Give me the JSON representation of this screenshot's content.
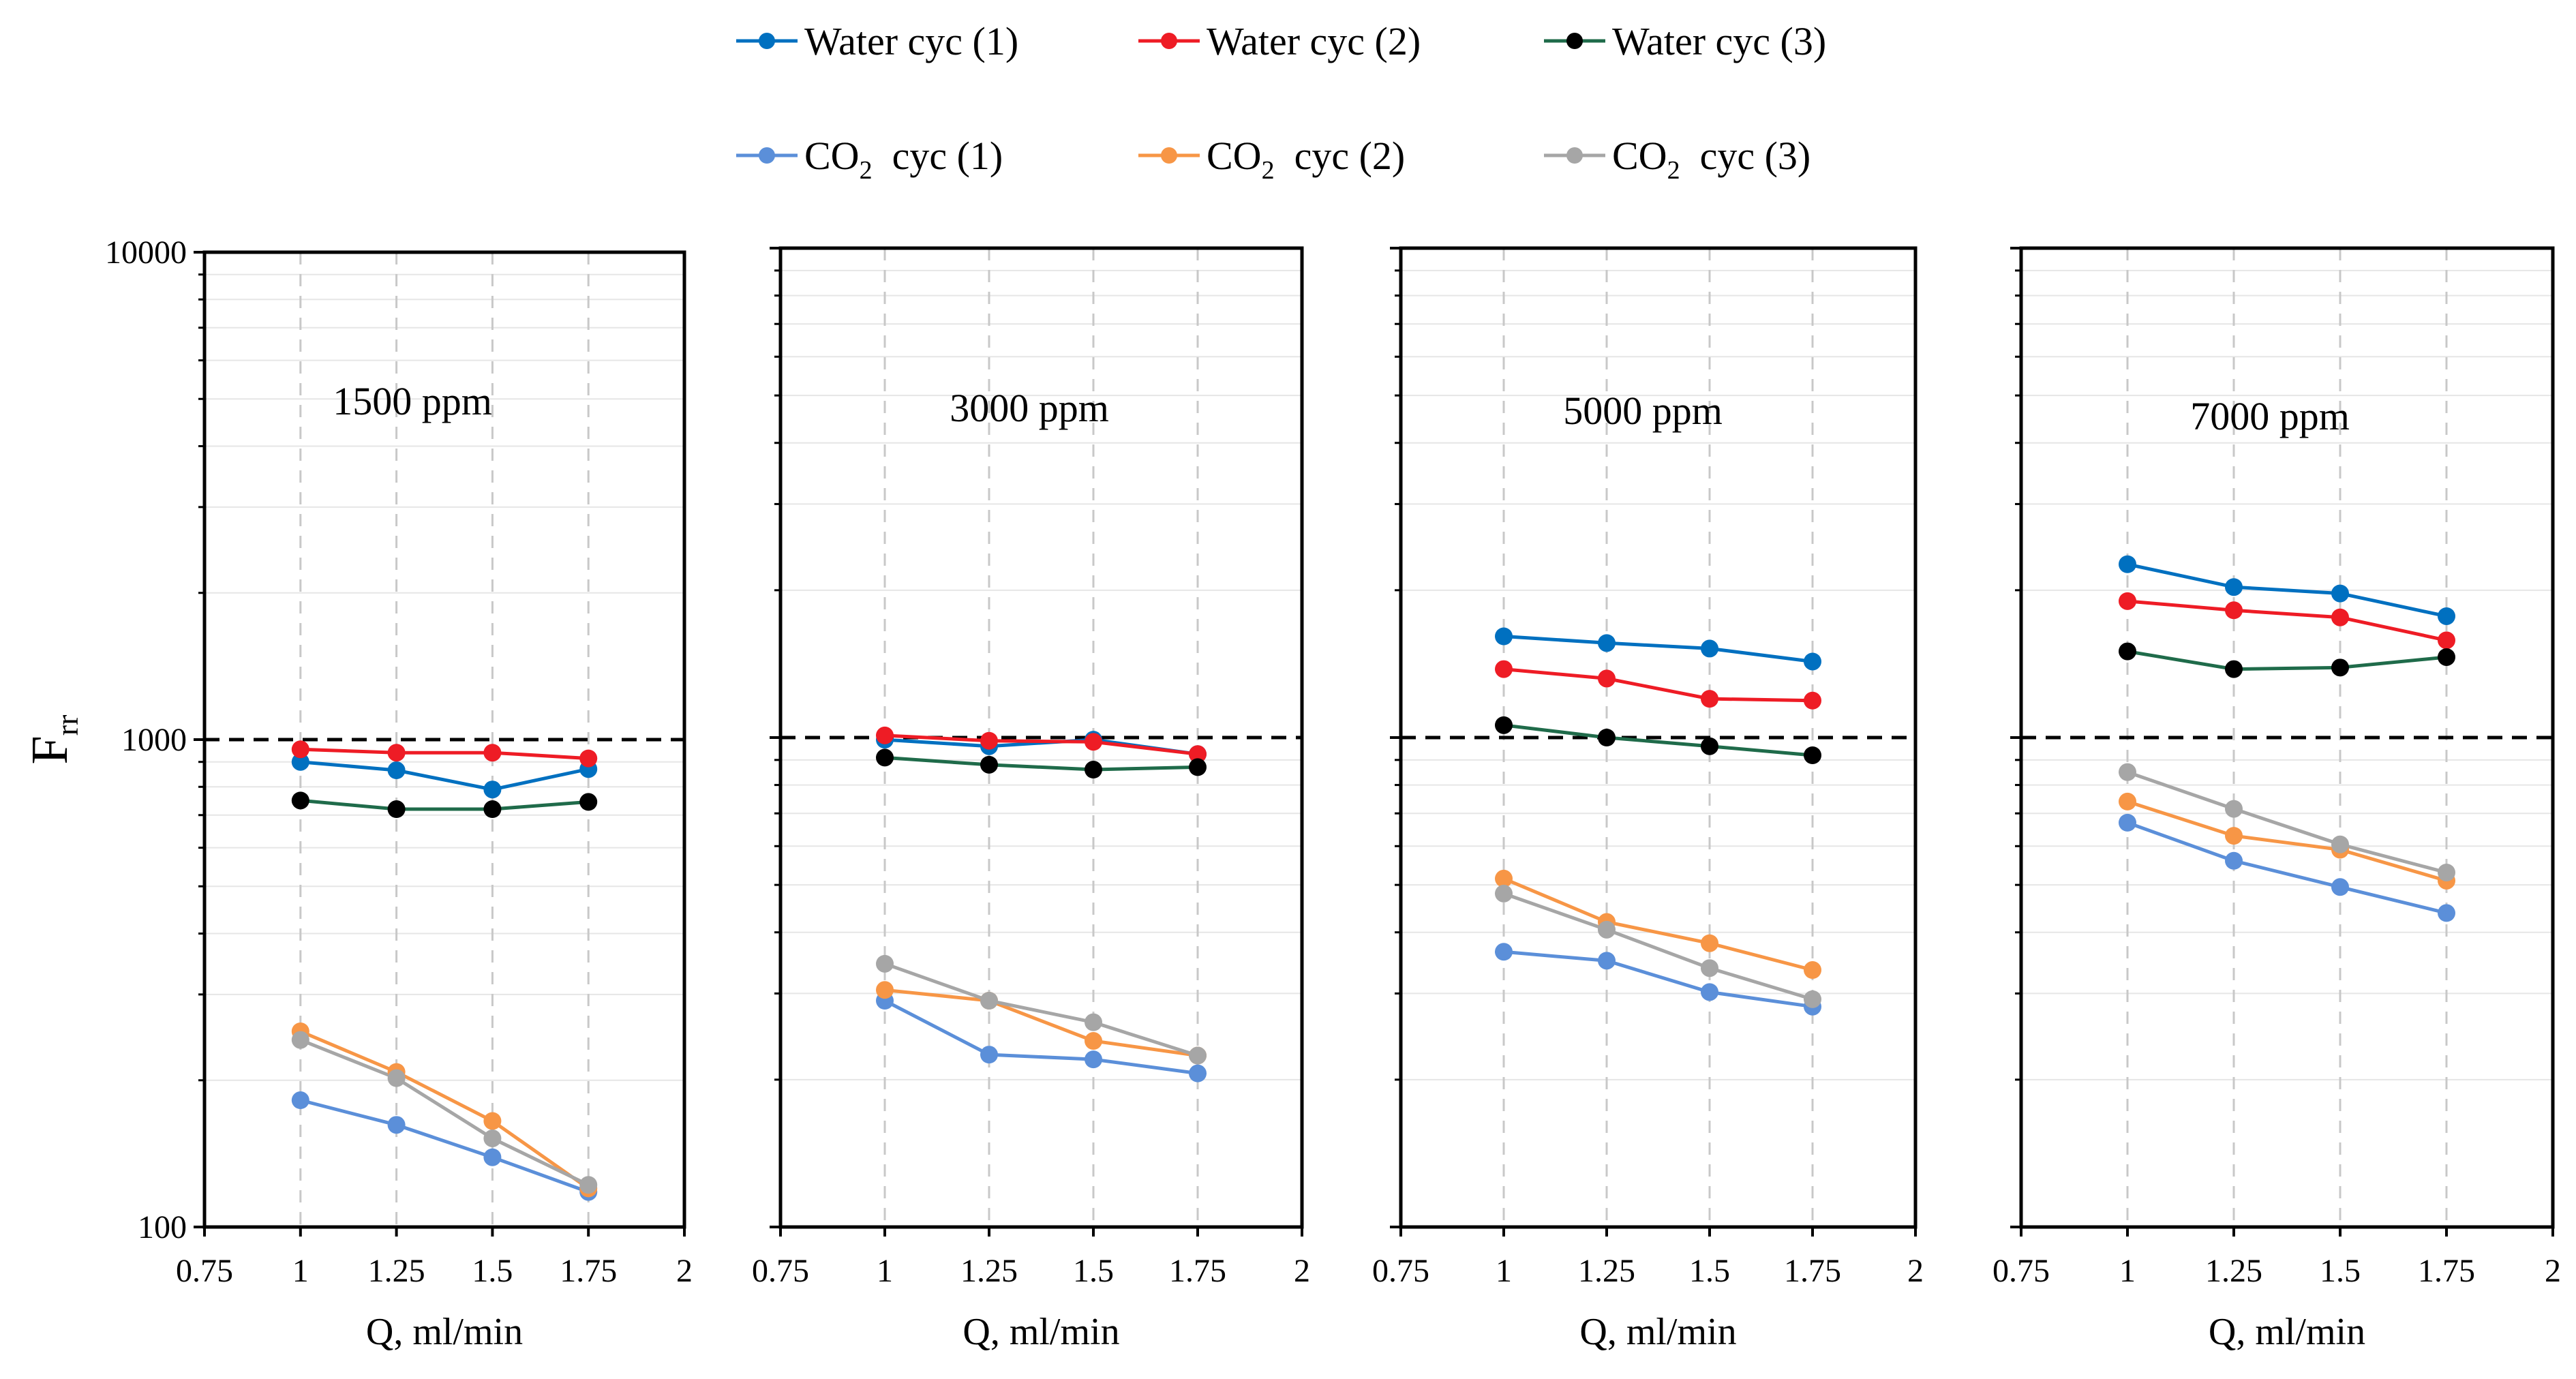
{
  "chart_data": {
    "type": "line",
    "y_scale": "log",
    "ylabel": "F",
    "ylabel_subscript": "rr",
    "xlabel": "Q, ml/min",
    "xlim": [
      0.75,
      2
    ],
    "ylim": [
      100,
      10000
    ],
    "x_ticks": [
      "0.75",
      "1",
      "1.25",
      "1.5",
      "1.75",
      "2"
    ],
    "y_ticks": [
      "100",
      "1000",
      "10000"
    ],
    "reference_line": {
      "y": 1000,
      "style": "dashed"
    },
    "x": [
      1,
      1.25,
      1.5,
      1.75
    ],
    "legend": [
      {
        "key": "water1",
        "prefix": "Water cyc (1)",
        "sub": "",
        "suffix": "",
        "color": "#0070C0"
      },
      {
        "key": "water2",
        "prefix": "Water cyc (2)",
        "sub": "",
        "suffix": "",
        "color": "#EE1C25"
      },
      {
        "key": "water3",
        "prefix": "Water cyc (3)",
        "sub": "",
        "suffix": "",
        "color": "#000000",
        "line_color": "#1F6B4A"
      },
      {
        "key": "co2_1",
        "prefix": "CO",
        "sub": "2",
        "suffix": "cyc (1)",
        "color": "#5B8FD9"
      },
      {
        "key": "co2_2",
        "prefix": "CO",
        "sub": "2",
        "suffix": "cyc (2)",
        "color": "#F79646"
      },
      {
        "key": "co2_3",
        "prefix": "CO",
        "sub": "2",
        "suffix": "cyc (3)",
        "color": "#A6A6A6"
      }
    ],
    "panels": [
      {
        "title": "1500 ppm",
        "series": {
          "water1": [
            900,
            865,
            790,
            870
          ],
          "water2": [
            955,
            940,
            940,
            915
          ],
          "water3": [
            750,
            720,
            720,
            745
          ],
          "co2_1": [
            182,
            162,
            139,
            118
          ],
          "co2_2": [
            252,
            208,
            165,
            120
          ],
          "co2_3": [
            242,
            202,
            152,
            122
          ]
        }
      },
      {
        "title": "3000 ppm",
        "series": {
          "water1": [
            990,
            960,
            990,
            925
          ],
          "water2": [
            1010,
            985,
            980,
            925
          ],
          "water3": [
            910,
            880,
            860,
            870
          ],
          "co2_1": [
            290,
            225,
            220,
            206
          ],
          "co2_2": [
            305,
            290,
            240,
            224
          ],
          "co2_3": [
            345,
            290,
            262,
            224
          ]
        }
      },
      {
        "title": "5000 ppm",
        "series": {
          "water1": [
            1610,
            1560,
            1520,
            1430
          ],
          "water2": [
            1380,
            1320,
            1200,
            1190
          ],
          "water3": [
            1060,
            1000,
            960,
            920
          ],
          "co2_1": [
            365,
            350,
            302,
            282
          ],
          "co2_2": [
            515,
            420,
            380,
            335
          ],
          "co2_3": [
            480,
            405,
            338,
            292
          ]
        }
      },
      {
        "title": "7000 ppm",
        "series": {
          "water1": [
            2260,
            2030,
            1970,
            1770
          ],
          "water2": [
            1900,
            1820,
            1760,
            1580
          ],
          "water3": [
            1500,
            1380,
            1390,
            1460
          ],
          "co2_1": [
            670,
            560,
            495,
            438
          ],
          "co2_2": [
            740,
            630,
            590,
            510
          ],
          "co2_3": [
            850,
            715,
            605,
            530
          ]
        }
      }
    ]
  }
}
